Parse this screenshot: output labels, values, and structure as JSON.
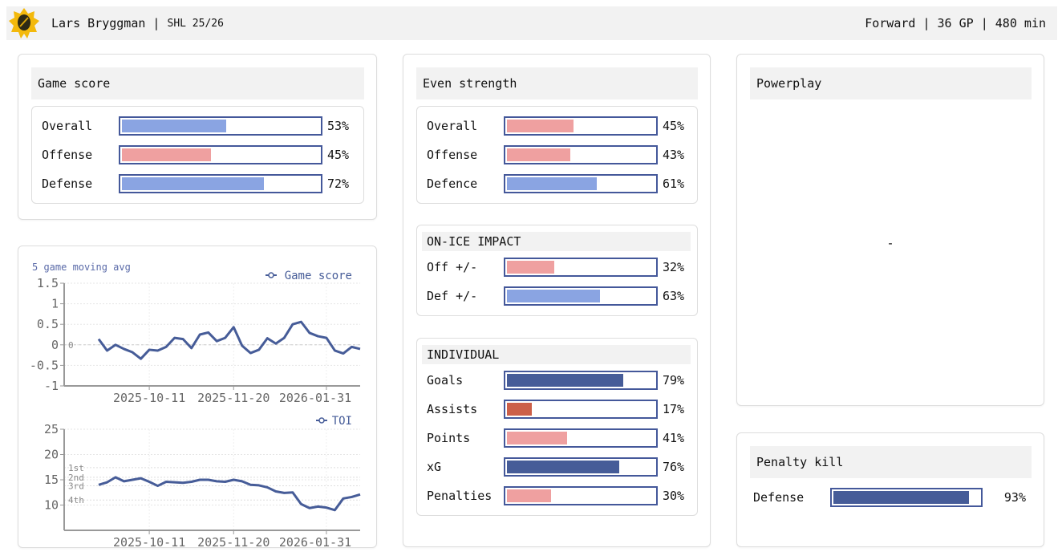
{
  "header": {
    "player": "Lars Bryggman",
    "sep": " | ",
    "league": "SHL 25/26",
    "right": "Forward | 36 GP | 480 min"
  },
  "colors": {
    "dark": "#465c98",
    "light_blue": "#8aa4e2",
    "pink": "#efa0a0",
    "red": "#cc5f48",
    "border": "#44589a"
  },
  "game_score": {
    "title": "Game score",
    "rows": [
      {
        "label": "Overall",
        "value": 53,
        "text": "53%",
        "color": "#8aa4e2"
      },
      {
        "label": "Offense",
        "value": 45,
        "text": "45%",
        "color": "#efa0a0"
      },
      {
        "label": "Defense",
        "value": 72,
        "text": "72%",
        "color": "#8aa4e2"
      }
    ]
  },
  "even_strength": {
    "title": "Even strength",
    "rows": [
      {
        "label": "Overall",
        "value": 45,
        "text": "45%",
        "color": "#efa0a0"
      },
      {
        "label": "Offense",
        "value": 43,
        "text": "43%",
        "color": "#efa0a0"
      },
      {
        "label": "Defence",
        "value": 61,
        "text": "61%",
        "color": "#8aa4e2"
      }
    ]
  },
  "on_ice": {
    "title": "ON-ICE IMPACT",
    "rows": [
      {
        "label": "Off +/-",
        "value": 32,
        "text": "32%",
        "color": "#efa0a0"
      },
      {
        "label": "Def +/-",
        "value": 63,
        "text": "63%",
        "color": "#8aa4e2"
      }
    ]
  },
  "individual": {
    "title": "INDIVIDUAL",
    "rows": [
      {
        "label": "Goals",
        "value": 79,
        "text": "79%",
        "color": "#465c98"
      },
      {
        "label": "Assists",
        "value": 17,
        "text": "17%",
        "color": "#cc5f48"
      },
      {
        "label": "Points",
        "value": 41,
        "text": "41%",
        "color": "#efa0a0"
      },
      {
        "label": "xG",
        "value": 76,
        "text": "76%",
        "color": "#465c98"
      },
      {
        "label": "Penalties",
        "value": 30,
        "text": "30%",
        "color": "#efa0a0"
      }
    ]
  },
  "powerplay": {
    "title": "Powerplay",
    "value": "-"
  },
  "penalty_kill": {
    "title": "Penalty kill",
    "rows": [
      {
        "label": "Defense",
        "value": 93,
        "text": "93%",
        "color": "#465c98"
      }
    ]
  },
  "chart_data": [
    {
      "type": "line",
      "subtitle": "5 game moving avg",
      "series": [
        {
          "name": "Game score",
          "values": [
            0.14,
            -0.14,
            0,
            -0.1,
            -0.18,
            -0.34,
            -0.12,
            -0.14,
            -0.05,
            0.17,
            0.14,
            -0.08,
            0.25,
            0.3,
            0.09,
            0.17,
            0.43,
            -0.02,
            -0.2,
            -0.12,
            0.16,
            0.03,
            0.17,
            0.5,
            0.56,
            0.29,
            0.21,
            0.17,
            -0.14,
            -0.21,
            -0.05,
            -0.1
          ]
        }
      ],
      "ylim": [
        -1,
        1.5
      ],
      "yticks": [
        "1.5",
        "1",
        "0.5",
        "0",
        "-0.5",
        "-1"
      ],
      "yvals": [
        1.5,
        1,
        0.5,
        0,
        -0.5,
        -1
      ],
      "xticks": [
        {
          "index": 6,
          "label": "2025-10-11"
        },
        {
          "index": 16,
          "label": "2025-11-20"
        },
        {
          "index": 27,
          "label": "2026-01-31"
        }
      ],
      "reference": {
        "value": 0,
        "label": "0"
      },
      "grid": true,
      "legend": "top-right"
    },
    {
      "type": "line",
      "series": [
        {
          "name": "TOI",
          "values": [
            14.0,
            14.5,
            15.5,
            14.7,
            15.0,
            15.3,
            14.6,
            13.8,
            14.6,
            14.5,
            14.4,
            14.6,
            15.0,
            15.0,
            14.7,
            14.6,
            15.0,
            14.7,
            14.0,
            13.9,
            13.5,
            12.7,
            12.4,
            12.5,
            10.2,
            9.4,
            9.7,
            9.5,
            9.0,
            11.3,
            11.6,
            12.1
          ]
        }
      ],
      "ylim": [
        5,
        25
      ],
      "yticks": [
        "25",
        "20",
        "15",
        "10"
      ],
      "yvals": [
        25,
        20,
        15,
        10
      ],
      "xticks": [
        {
          "index": 6,
          "label": "2025-10-11"
        },
        {
          "index": 16,
          "label": "2025-11-20"
        },
        {
          "index": 27,
          "label": "2026-01-31"
        }
      ],
      "reference_lines": [
        {
          "value": 17.4,
          "label": "1st"
        },
        {
          "value": 15.5,
          "label": "2nd"
        },
        {
          "value": 13.8,
          "label": "3rd"
        },
        {
          "value": 11.0,
          "label": "4th"
        }
      ],
      "grid": true,
      "legend": "top-right"
    }
  ]
}
